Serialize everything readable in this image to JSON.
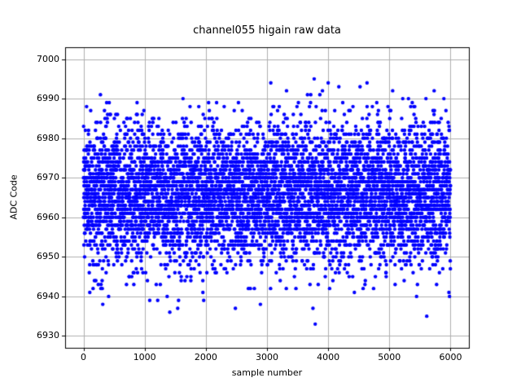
{
  "chart_data": {
    "type": "scatter",
    "title": "channel055 higain raw data",
    "xlabel": "sample number",
    "ylabel": "ADC Code",
    "x_ticks": [
      0,
      1000,
      2000,
      3000,
      4000,
      5000,
      6000
    ],
    "y_ticks": [
      6930,
      6940,
      6950,
      6960,
      6970,
      6980,
      6990,
      7000
    ],
    "xlim": [
      -300,
      6300
    ],
    "ylim": [
      6927,
      7003
    ],
    "grid": true,
    "legend": "none",
    "marker": {
      "shape": "circle",
      "color": "#0000ff",
      "radius_px": 2.2
    },
    "points": {
      "generator": "gaussian-noise",
      "n": 6000,
      "x_start": 0,
      "x_step": 1,
      "y_mean": 6966,
      "y_std": 9,
      "y_min": 6930,
      "y_max": 7000,
      "y_quantized": true,
      "seed": 1234
    },
    "colors": {
      "background": "#ffffff",
      "plot_background": "#ffffff",
      "grid": "#b0b0b0",
      "axes": "#000000",
      "text": "#000000"
    }
  }
}
